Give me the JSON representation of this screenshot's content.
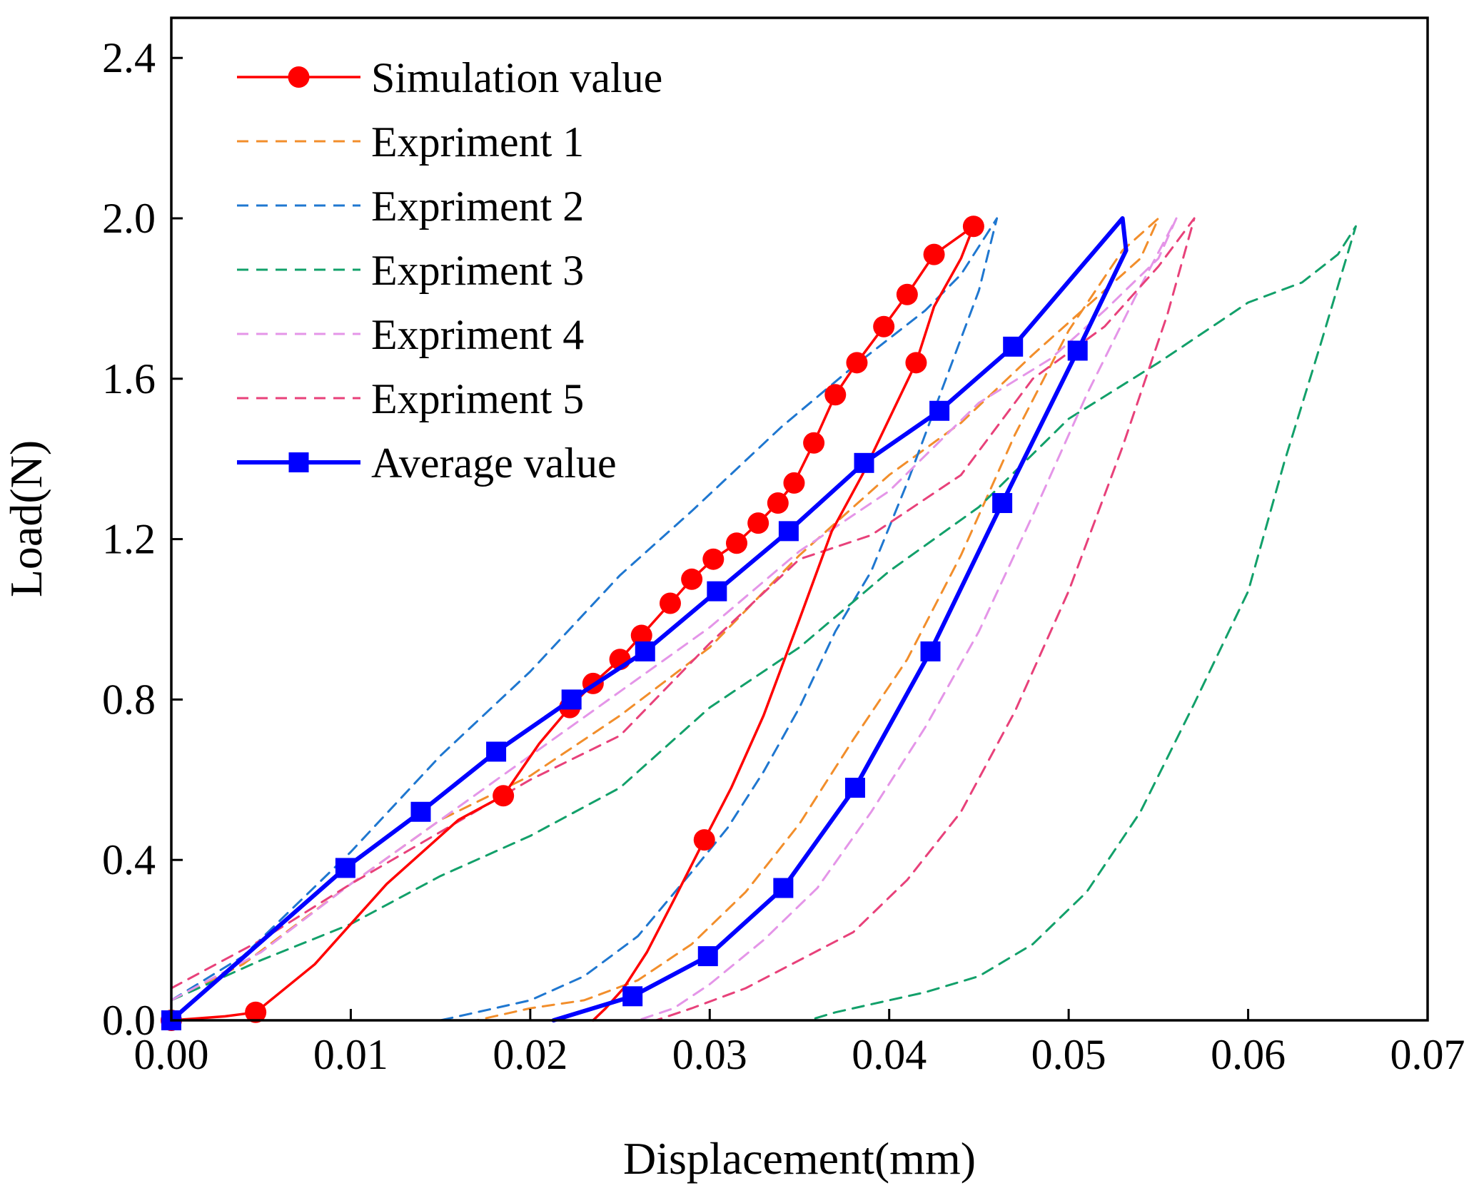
{
  "chart_data": {
    "type": "line",
    "title": "",
    "xlabel": "Displacement(mm)",
    "ylabel": "Load(N)",
    "xlim": [
      0,
      0.07
    ],
    "ylim": [
      0,
      2.5
    ],
    "grid": false,
    "legend_position": "top-left",
    "x_ticks": [
      0.0,
      0.01,
      0.02,
      0.03,
      0.04,
      0.05,
      0.06,
      0.07
    ],
    "x_tick_labels": [
      "0.00",
      "0.01",
      "0.02",
      "0.03",
      "0.04",
      "0.05",
      "0.06",
      "0.07"
    ],
    "y_ticks": [
      0.0,
      0.4,
      0.8,
      1.2,
      1.6,
      2.0,
      2.4
    ],
    "y_tick_labels": [
      "0.0",
      "0.4",
      "0.8",
      "1.2",
      "1.6",
      "2.0",
      "2.4"
    ],
    "series": [
      {
        "name": "Simulation value",
        "color": "#ff0000",
        "style": "solid",
        "marker": "circle",
        "x": [
          0.0,
          0.003,
          0.0047,
          0.008,
          0.012,
          0.016,
          0.0185,
          0.0205,
          0.0222,
          0.0235,
          0.025,
          0.0262,
          0.0278,
          0.029,
          0.0302,
          0.0315,
          0.0327,
          0.0338,
          0.0347,
          0.0358,
          0.037,
          0.0382,
          0.0397,
          0.041,
          0.0425,
          0.0447,
          0.044,
          0.0425,
          0.0415,
          0.04,
          0.0385,
          0.0368,
          0.035,
          0.033,
          0.0312,
          0.0297,
          0.028,
          0.0265,
          0.0252,
          0.0242,
          0.0235
        ],
        "y": [
          0.0,
          0.01,
          0.02,
          0.14,
          0.34,
          0.5,
          0.56,
          0.69,
          0.78,
          0.84,
          0.9,
          0.96,
          1.04,
          1.1,
          1.15,
          1.19,
          1.24,
          1.29,
          1.34,
          1.44,
          1.56,
          1.64,
          1.73,
          1.81,
          1.91,
          1.98,
          1.9,
          1.78,
          1.64,
          1.5,
          1.36,
          1.22,
          1.0,
          0.76,
          0.58,
          0.45,
          0.3,
          0.17,
          0.08,
          0.03,
          0.0
        ],
        "marker_x": [
          0.0,
          0.0047,
          0.0185,
          0.0222,
          0.0235,
          0.025,
          0.0262,
          0.0278,
          0.029,
          0.0302,
          0.0315,
          0.0327,
          0.0338,
          0.0347,
          0.0358,
          0.037,
          0.0382,
          0.0397,
          0.041,
          0.0425,
          0.0447,
          0.0415,
          0.0297
        ],
        "marker_y": [
          0.0,
          0.02,
          0.56,
          0.78,
          0.84,
          0.9,
          0.96,
          1.04,
          1.1,
          1.15,
          1.19,
          1.24,
          1.29,
          1.34,
          1.44,
          1.56,
          1.64,
          1.73,
          1.81,
          1.91,
          1.98,
          1.64,
          0.45
        ]
      },
      {
        "name": "Expriment 1",
        "color": "#f28e2b",
        "style": "dashed",
        "x": [
          0.0,
          0.004,
          0.01,
          0.015,
          0.02,
          0.025,
          0.03,
          0.035,
          0.04,
          0.044,
          0.048,
          0.051,
          0.054,
          0.055,
          0.053,
          0.05,
          0.047,
          0.044,
          0.041,
          0.038,
          0.035,
          0.032,
          0.029,
          0.026,
          0.023,
          0.02,
          0.017
        ],
        "y": [
          0.05,
          0.14,
          0.34,
          0.5,
          0.61,
          0.76,
          0.93,
          1.16,
          1.36,
          1.49,
          1.66,
          1.78,
          1.9,
          2.0,
          1.92,
          1.72,
          1.46,
          1.16,
          0.9,
          0.7,
          0.49,
          0.32,
          0.19,
          0.1,
          0.05,
          0.03,
          0.0
        ]
      },
      {
        "name": "Expriment 2",
        "color": "#1f77d0",
        "style": "dashed",
        "x": [
          0.0,
          0.004,
          0.01,
          0.015,
          0.02,
          0.025,
          0.029,
          0.034,
          0.038,
          0.042,
          0.044,
          0.046,
          0.045,
          0.043,
          0.041,
          0.039,
          0.037,
          0.035,
          0.033,
          0.031,
          0.029,
          0.026,
          0.023,
          0.02,
          0.017,
          0.015
        ],
        "y": [
          0.05,
          0.16,
          0.42,
          0.66,
          0.87,
          1.11,
          1.27,
          1.48,
          1.63,
          1.77,
          1.86,
          2.0,
          1.82,
          1.58,
          1.34,
          1.12,
          0.97,
          0.78,
          0.62,
          0.48,
          0.37,
          0.21,
          0.11,
          0.05,
          0.02,
          0.0
        ]
      },
      {
        "name": "Expriment 3",
        "color": "#12a06a",
        "style": "dashed",
        "x": [
          0.0,
          0.005,
          0.01,
          0.015,
          0.02,
          0.025,
          0.03,
          0.035,
          0.04,
          0.045,
          0.05,
          0.055,
          0.06,
          0.063,
          0.065,
          0.066,
          0.064,
          0.062,
          0.06,
          0.057,
          0.054,
          0.051,
          0.048,
          0.045,
          0.042,
          0.039,
          0.037,
          0.0355
        ],
        "y": [
          0.05,
          0.15,
          0.24,
          0.36,
          0.46,
          0.58,
          0.78,
          0.93,
          1.12,
          1.28,
          1.5,
          1.64,
          1.79,
          1.84,
          1.91,
          1.98,
          1.68,
          1.39,
          1.07,
          0.79,
          0.52,
          0.32,
          0.19,
          0.11,
          0.07,
          0.04,
          0.02,
          0.0
        ]
      },
      {
        "name": "Expriment 4",
        "color": "#e495e8",
        "style": "dashed",
        "x": [
          0.0,
          0.005,
          0.01,
          0.015,
          0.02,
          0.025,
          0.03,
          0.035,
          0.04,
          0.045,
          0.049,
          0.052,
          0.055,
          0.056,
          0.054,
          0.051,
          0.048,
          0.045,
          0.042,
          0.039,
          0.036,
          0.033,
          0.03,
          0.028,
          0.026
        ],
        "y": [
          0.05,
          0.17,
          0.34,
          0.5,
          0.66,
          0.82,
          0.98,
          1.17,
          1.32,
          1.54,
          1.65,
          1.77,
          1.9,
          2.0,
          1.83,
          1.56,
          1.26,
          0.97,
          0.73,
          0.52,
          0.33,
          0.2,
          0.09,
          0.03,
          0.0
        ]
      },
      {
        "name": "Expriment 5",
        "color": "#e8417a",
        "style": "dashed",
        "x": [
          0.0,
          0.005,
          0.01,
          0.015,
          0.02,
          0.025,
          0.03,
          0.035,
          0.039,
          0.044,
          0.048,
          0.052,
          0.055,
          0.057,
          0.0555,
          0.053,
          0.05,
          0.047,
          0.044,
          0.041,
          0.038,
          0.035,
          0.032,
          0.029,
          0.027
        ],
        "y": [
          0.08,
          0.2,
          0.34,
          0.47,
          0.6,
          0.71,
          0.94,
          1.15,
          1.21,
          1.36,
          1.6,
          1.73,
          1.88,
          2.0,
          1.76,
          1.43,
          1.07,
          0.77,
          0.52,
          0.35,
          0.22,
          0.15,
          0.08,
          0.03,
          0.0
        ]
      },
      {
        "name": "Average value",
        "color": "#0000ff",
        "style": "solid",
        "marker": "square",
        "x": [
          0.0,
          0.0097,
          0.0139,
          0.0181,
          0.0223,
          0.0264,
          0.0304,
          0.0344,
          0.0386,
          0.0428,
          0.0469,
          0.053,
          0.0532,
          0.0505,
          0.0463,
          0.0423,
          0.0381,
          0.0341,
          0.0299,
          0.0257,
          0.0213
        ],
        "y": [
          0.0,
          0.38,
          0.52,
          0.67,
          0.8,
          0.92,
          1.07,
          1.22,
          1.39,
          1.52,
          1.68,
          2.0,
          1.92,
          1.67,
          1.29,
          0.92,
          0.58,
          0.33,
          0.16,
          0.06,
          0.0
        ],
        "marker_x": [
          0.0,
          0.0097,
          0.0139,
          0.0181,
          0.0223,
          0.0264,
          0.0304,
          0.0344,
          0.0386,
          0.0428,
          0.0469,
          0.0505,
          0.0463,
          0.0423,
          0.0381,
          0.0341,
          0.0299,
          0.0257
        ],
        "marker_y": [
          0.0,
          0.38,
          0.52,
          0.67,
          0.8,
          0.92,
          1.07,
          1.22,
          1.39,
          1.52,
          1.68,
          1.67,
          1.29,
          0.92,
          0.58,
          0.33,
          0.16,
          0.06
        ]
      }
    ]
  }
}
